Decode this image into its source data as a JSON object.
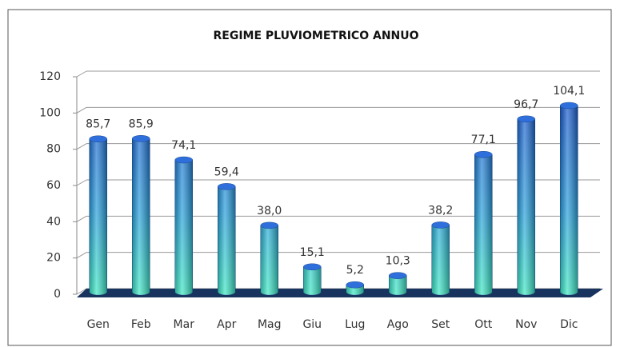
{
  "chart_data": {
    "type": "bar",
    "title": "REGIME PLUVIOMETRICO ANNUO",
    "categories": [
      "Gen",
      "Feb",
      "Mar",
      "Apr",
      "Mag",
      "Giu",
      "Lug",
      "Ago",
      "Set",
      "Ott",
      "Nov",
      "Dic"
    ],
    "values": [
      85.7,
      85.9,
      74.1,
      59.4,
      38.0,
      15.1,
      5.2,
      10.3,
      38.2,
      77.1,
      96.7,
      104.1
    ],
    "value_labels": [
      "85,7",
      "85,9",
      "74,1",
      "59,4",
      "38,0",
      "15,1",
      "5,2",
      "10,3",
      "38,2",
      "77,1",
      "96,7",
      "104,1"
    ],
    "ylim": [
      0,
      120
    ],
    "yticks": [
      0,
      20,
      40,
      60,
      80,
      100,
      120
    ],
    "grid": true
  }
}
